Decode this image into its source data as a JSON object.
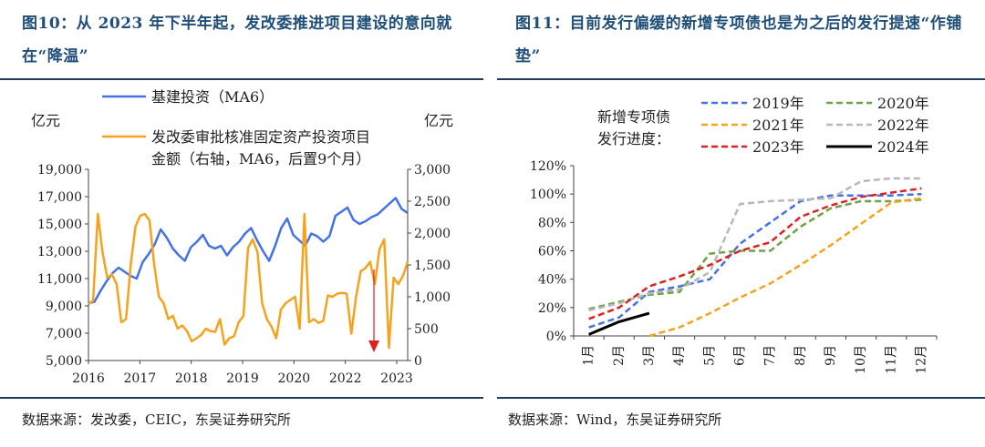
{
  "figure_left": {
    "title": "图10：从 2023 年下半年起，发改委推进项目建设的意向就在“降温”",
    "source": "数据来源：发改委，CEIC，东吴证券研究所"
  },
  "figure_right": {
    "title": "图11：目前发行偏缓的新增专项债也是为之后的发行提速“作铺垫”",
    "source": "数据来源：Wind，东吴证券研究所"
  },
  "chart_data": [
    {
      "type": "line",
      "ylabel_left": "亿元",
      "ylabel_right": "亿元",
      "ylim_left": [
        5000,
        19000
      ],
      "ylim_right": [
        0,
        3000
      ],
      "y_ticks_left": [
        "5,000",
        "7,000",
        "9,000",
        "11,000",
        "13,000",
        "15,000",
        "17,000",
        "19,000"
      ],
      "y_ticks_right": [
        "0",
        "500",
        "1,000",
        "1,500",
        "2,000",
        "2,500",
        "3,000"
      ],
      "x_ticks": [
        "2016",
        "2017",
        "2018",
        "2019",
        "2020",
        "2022",
        "2023"
      ],
      "legend_position": "top",
      "annotation": "red downward arrow, 2023",
      "colors": {
        "infra": "#4472e6",
        "ndrc": "#f5a21c",
        "arrow": "#e02020"
      },
      "series": [
        {
          "name": "基建投资（MA6）",
          "axis": "left",
          "values": [
            9200,
            9300,
            10100,
            10800,
            11400,
            11800,
            11500,
            11200,
            11000,
            12200,
            12800,
            13500,
            14600,
            14000,
            13200,
            12700,
            12300,
            13300,
            13700,
            14200,
            13400,
            13200,
            13400,
            12700,
            13300,
            13700,
            14300,
            14700,
            13800,
            13000,
            12300,
            13400,
            14700,
            15400,
            14200,
            13800,
            13400,
            14300,
            14100,
            13700,
            14100,
            15600,
            15900,
            16200,
            15300,
            15000,
            15200,
            15500,
            15700,
            16100,
            16500,
            16900,
            16100,
            15800
          ]
        },
        {
          "name": "发改委审批核准固定资产投资项目金额（右轴，MA6，后置9个月）",
          "axis": "right",
          "values": [
            880,
            940,
            2300,
            1700,
            1300,
            1350,
            1200,
            600,
            650,
            1500,
            2100,
            2270,
            2300,
            2200,
            1500,
            1000,
            900,
            650,
            700,
            500,
            550,
            460,
            300,
            350,
            400,
            500,
            460,
            450,
            650,
            250,
            350,
            380,
            600,
            700,
            1770,
            1900,
            1700,
            900,
            650,
            530,
            350,
            800,
            900,
            950,
            1000,
            500,
            2300,
            600,
            650,
            590,
            620,
            1020,
            1000,
            1050,
            1060,
            1050,
            420,
            1000,
            1400,
            1450,
            1550,
            1200,
            1750,
            1900,
            200,
            1300,
            1200,
            1330,
            1550
          ]
        }
      ]
    },
    {
      "type": "line",
      "legend_title": "新增专项债发行进度：",
      "categories": [
        "1月",
        "2月",
        "3月",
        "4月",
        "5月",
        "6月",
        "7月",
        "8月",
        "9月",
        "10月",
        "11月",
        "12月"
      ],
      "ylim": [
        0,
        120
      ],
      "y_ticks": [
        "0%",
        "20%",
        "40%",
        "60%",
        "80%",
        "100%",
        "120%"
      ],
      "legend_position": "top",
      "series": [
        {
          "name": "2019年",
          "color": "#4472e6",
          "style": "dashed",
          "values": [
            6,
            13,
            31,
            35,
            40,
            65,
            80,
            95,
            99,
            99,
            99,
            100
          ]
        },
        {
          "name": "2020年",
          "color": "#6ea244",
          "style": "dashed",
          "values": [
            19,
            24,
            29,
            31,
            58,
            60,
            60,
            77,
            90,
            95,
            95,
            96
          ]
        },
        {
          "name": "2021年",
          "color": "#f5a21c",
          "style": "dashed",
          "values": [
            null,
            null,
            0,
            6,
            16,
            27,
            37,
            50,
            64,
            79,
            94,
            97
          ]
        },
        {
          "name": "2022年",
          "color": "#b8b8b8",
          "style": "dashed",
          "values": [
            18,
            23,
            30,
            33,
            45,
            93,
            95,
            96,
            97,
            109,
            111,
            111
          ]
        },
        {
          "name": "2023年",
          "color": "#e02020",
          "style": "dashed",
          "values": [
            12,
            20,
            35,
            42,
            50,
            60,
            66,
            84,
            92,
            98,
            101,
            104
          ]
        },
        {
          "name": "2024年",
          "color": "#000000",
          "style": "solid",
          "values": [
            1,
            10,
            16,
            null,
            null,
            null,
            null,
            null,
            null,
            null,
            null,
            null
          ]
        }
      ]
    }
  ]
}
